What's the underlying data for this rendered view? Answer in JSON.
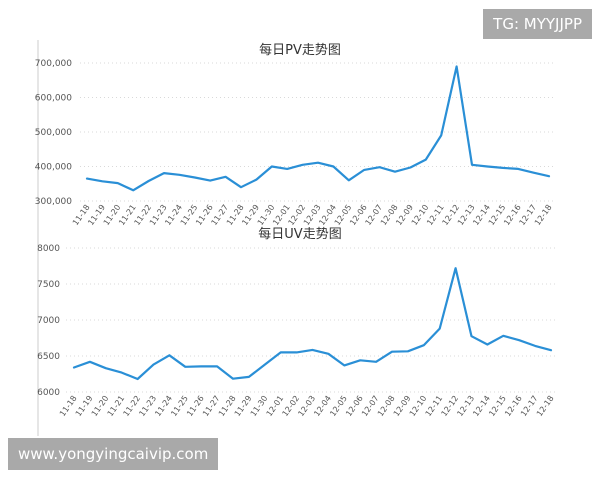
{
  "watermarks": {
    "top_right": "TG: MYYJJPP",
    "bottom_left": "www.yongyingcaivip.com"
  },
  "colors": {
    "line": "#2a8fd6",
    "grid": "#d9d9d9",
    "axis": "#cccccc"
  },
  "chart_data": [
    {
      "type": "line",
      "title": "每日PV走势图",
      "xlabel": "",
      "ylabel": "",
      "ylim": [
        300000,
        700000
      ],
      "yticks": [
        300000,
        400000,
        500000,
        600000,
        700000
      ],
      "ytick_labels": [
        "300,000",
        "400,000",
        "500,000",
        "600,000",
        "700,000"
      ],
      "grid": "horizontal dotted",
      "legend": "none",
      "categories": [
        "11-18",
        "11-19",
        "11-20",
        "11-21",
        "11-22",
        "11-23",
        "11-24",
        "11-25",
        "11-26",
        "11-27",
        "11-28",
        "11-29",
        "11-30",
        "12-01",
        "12-02",
        "12-03",
        "12-04",
        "12-05",
        "12-06",
        "12-07",
        "12-08",
        "12-09",
        "12-10",
        "12-11",
        "12-12",
        "12-13",
        "12-14",
        "12-15",
        "12-16",
        "12-17",
        "12-18"
      ],
      "series": [
        {
          "values": [
            365000,
            357000,
            352000,
            331000,
            358000,
            381000,
            376000,
            368000,
            359000,
            370000,
            340000,
            362000,
            400000,
            393000,
            405000,
            411000,
            400000,
            360000,
            390000,
            398000,
            385000,
            397000,
            420000,
            490000,
            690000,
            405000,
            400000,
            396000,
            393000,
            382000,
            372000
          ]
        }
      ]
    },
    {
      "type": "line",
      "title": "每日UV走势图",
      "xlabel": "",
      "ylabel": "",
      "ylim": [
        6000,
        8000
      ],
      "yticks": [
        6000,
        6500,
        7000,
        7500,
        8000
      ],
      "ytick_labels": [
        "6000",
        "6500",
        "7000",
        "7500",
        "8000"
      ],
      "grid": "horizontal dotted",
      "legend": "none",
      "categories": [
        "11-18",
        "11-19",
        "11-20",
        "11-21",
        "11-22",
        "11-23",
        "11-24",
        "11-25",
        "11-26",
        "11-27",
        "11-28",
        "11-29",
        "11-30",
        "12-01",
        "12-02",
        "12-03",
        "12-04",
        "12-05",
        "12-06",
        "12-07",
        "12-08",
        "12-09",
        "12-10",
        "12-11",
        "12-12",
        "12-13",
        "12-14",
        "12-15",
        "12-16",
        "12-17",
        "12-18"
      ],
      "series": [
        {
          "values": [
            6340,
            6420,
            6330,
            6270,
            6180,
            6380,
            6510,
            6350,
            6355,
            6355,
            6185,
            6210,
            6380,
            6550,
            6550,
            6585,
            6530,
            6370,
            6440,
            6420,
            6560,
            6565,
            6650,
            6880,
            7720,
            6775,
            6660,
            6780,
            6720,
            6640,
            6580
          ]
        }
      ]
    }
  ]
}
